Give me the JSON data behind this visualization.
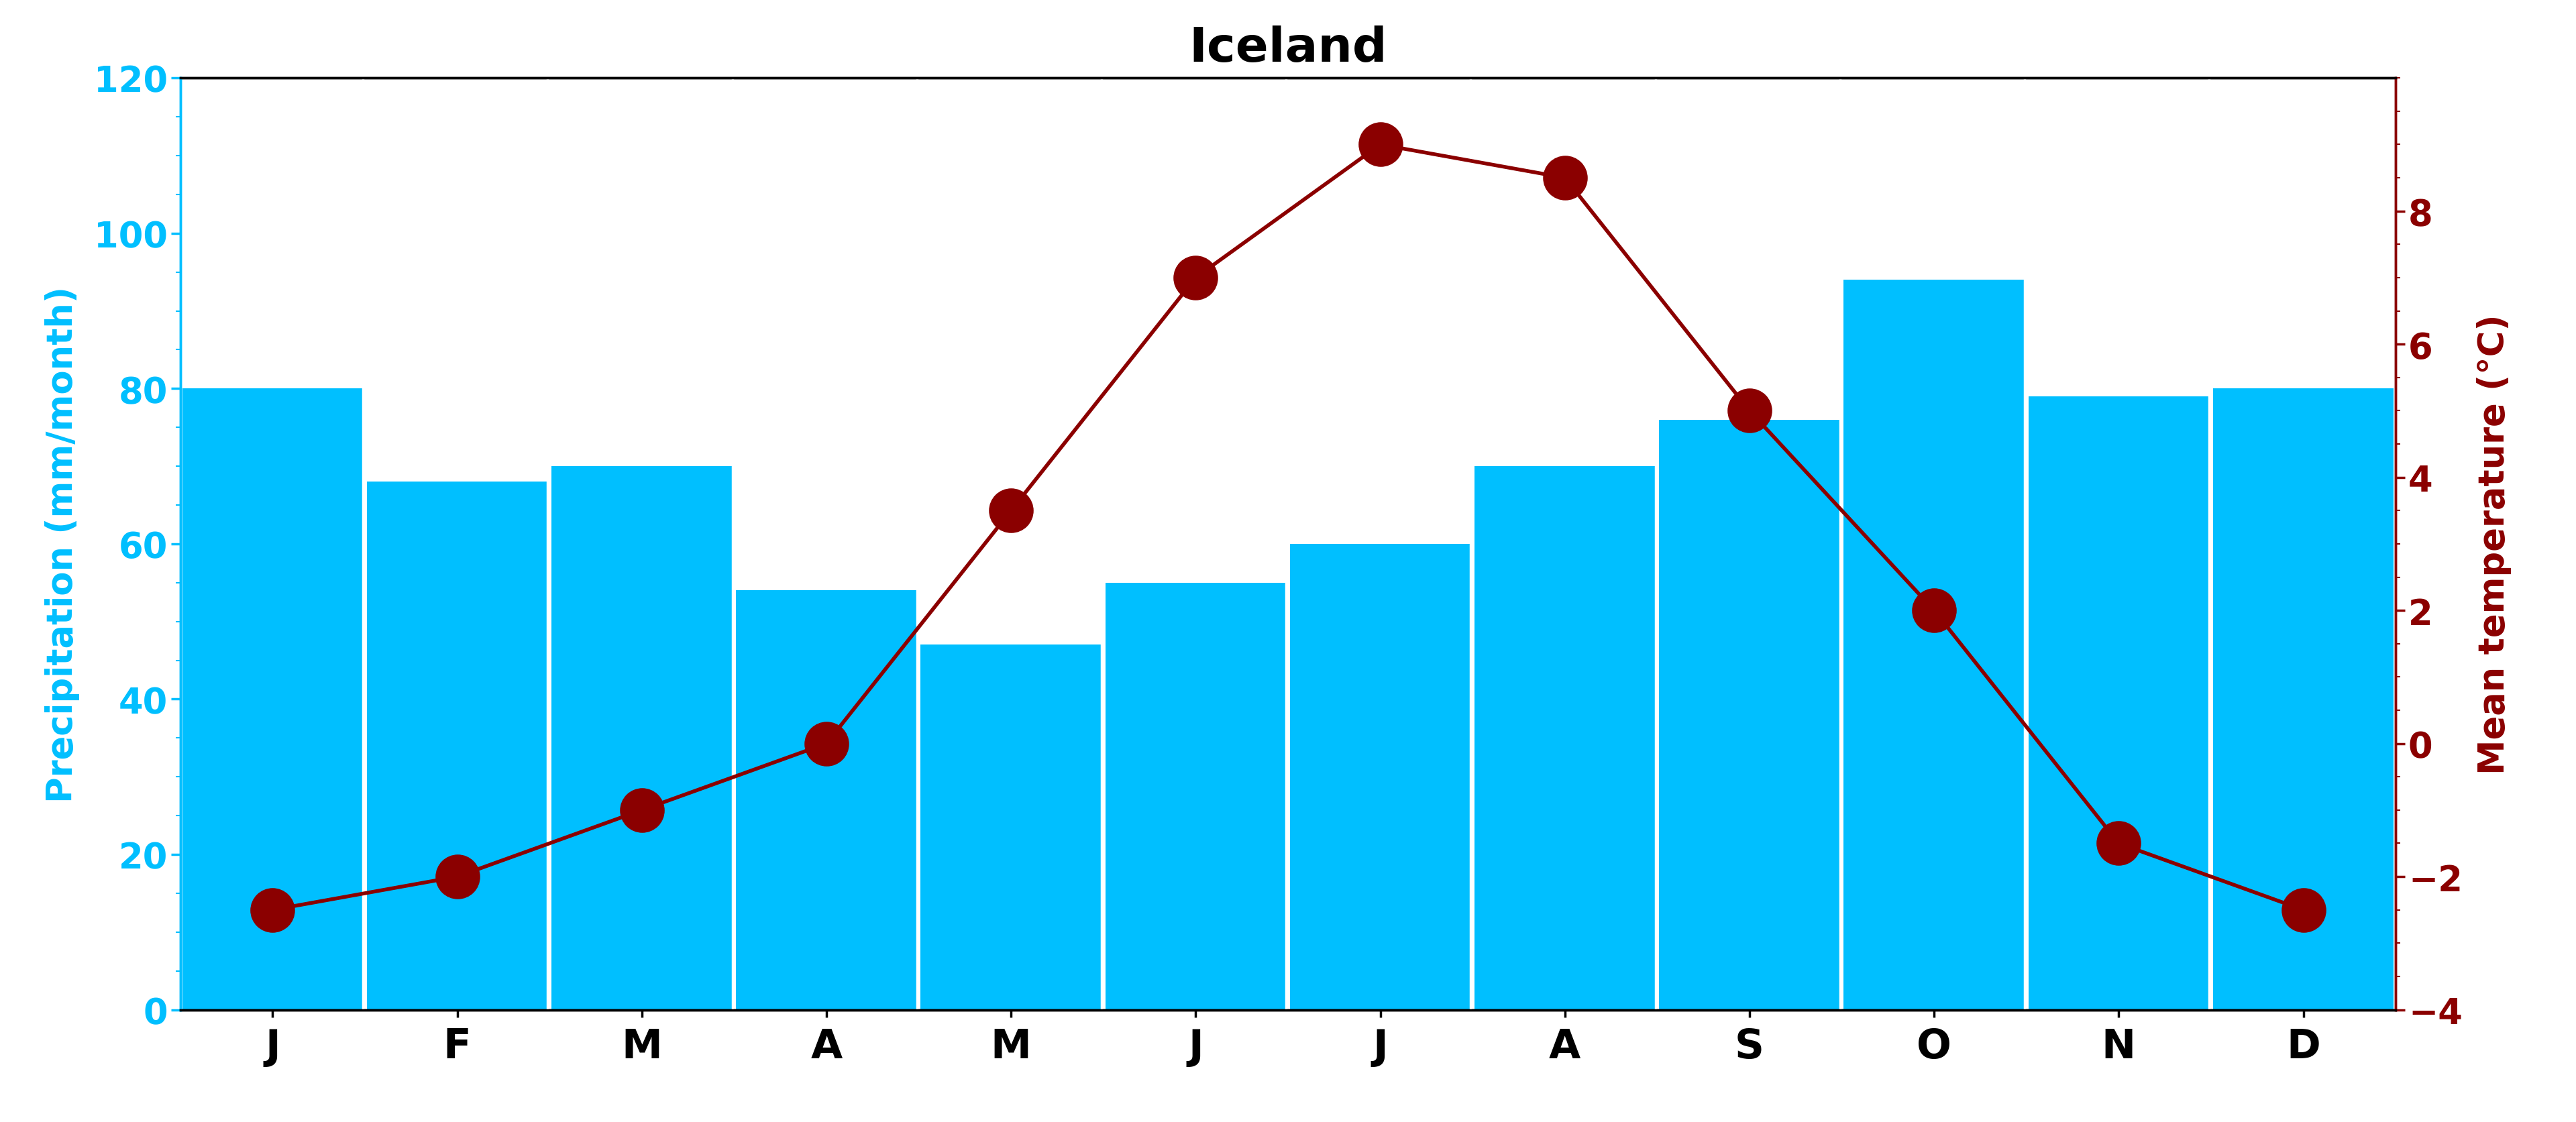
{
  "title": "Iceland",
  "months": [
    "J",
    "F",
    "M",
    "A",
    "M",
    "J",
    "J",
    "A",
    "S",
    "O",
    "N",
    "D"
  ],
  "precipitation": [
    80,
    68,
    70,
    54,
    47,
    55,
    60,
    70,
    76,
    94,
    79,
    80
  ],
  "temperature": [
    -2.5,
    -2.0,
    -1.0,
    0.0,
    3.5,
    7.0,
    9.0,
    8.5,
    5.0,
    2.0,
    -1.5,
    -2.5
  ],
  "bar_color": "#00BFFF",
  "line_color": "#8B0000",
  "dot_color": "#8B0000",
  "left_axis_color": "#00BFFF",
  "right_axis_color": "#8B0000",
  "ylim_precip": [
    0,
    120
  ],
  "ylim_temp": [
    -4,
    10
  ],
  "yticks_precip": [
    0,
    20,
    40,
    60,
    80,
    100,
    120
  ],
  "yticks_temp": [
    -4,
    -2,
    0,
    2,
    4,
    6,
    8
  ],
  "title_fontsize": 52,
  "axis_label_fontsize": 38,
  "tick_fontsize": 38,
  "month_fontsize": 44,
  "left_ylabel": "Precipitation (mm/month)",
  "right_ylabel": "Mean temperature (°C)",
  "background_color": "#FFFFFF",
  "dot_size": 2200,
  "line_width": 4,
  "bar_width": 0.98,
  "spine_linewidth": 2.5
}
